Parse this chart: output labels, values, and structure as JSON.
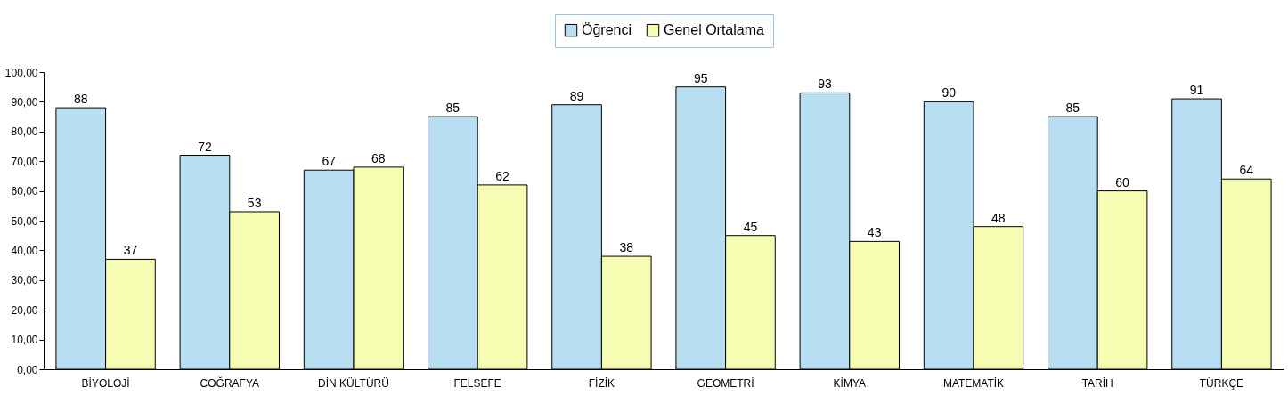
{
  "chart_data": {
    "type": "bar",
    "categories": [
      "BİYOLOJİ",
      "COĞRAFYA",
      "DİN KÜLTÜRÜ",
      "FELSEFE",
      "FİZİK",
      "GEOMETRİ",
      "KİMYA",
      "MATEMATİK",
      "TARİH",
      "TÜRKÇE"
    ],
    "series": [
      {
        "name": "Öğrenci",
        "color": "#b8def2",
        "values": [
          88,
          72,
          67,
          85,
          89,
          95,
          93,
          90,
          85,
          91
        ]
      },
      {
        "name": "Genel Ortalama",
        "color": "#f6fcb2",
        "values": [
          37,
          53,
          68,
          62,
          38,
          45,
          43,
          48,
          60,
          64
        ]
      }
    ],
    "ylim": [
      0,
      100
    ],
    "yticks": [
      {
        "value": 0,
        "label": "0,00"
      },
      {
        "value": 10,
        "label": "10,00"
      },
      {
        "value": 20,
        "label": "20,00"
      },
      {
        "value": 30,
        "label": "30,00"
      },
      {
        "value": 40,
        "label": "40,00"
      },
      {
        "value": 50,
        "label": "50,00"
      },
      {
        "value": 60,
        "label": "60,00"
      },
      {
        "value": 70,
        "label": "70,00"
      },
      {
        "value": 80,
        "label": "80,00"
      },
      {
        "value": 90,
        "label": "90,00"
      },
      {
        "value": 100,
        "label": "100,00"
      }
    ],
    "data_labels": true,
    "legend": "top",
    "grid": false
  }
}
